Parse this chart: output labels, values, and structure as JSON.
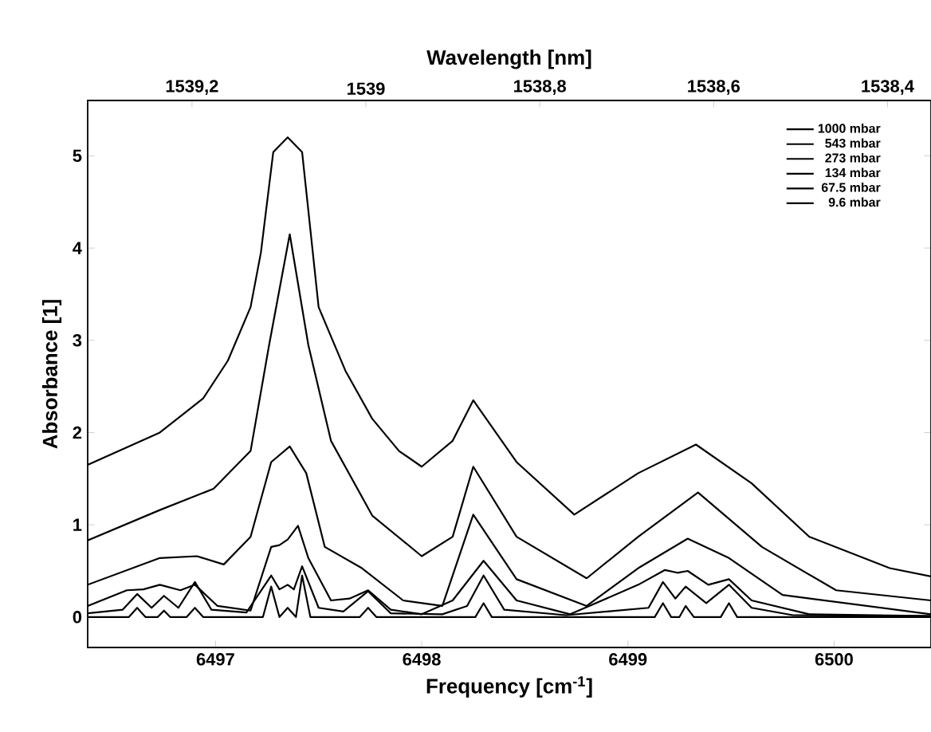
{
  "chart_data": {
    "type": "line",
    "xlabel": "Frequency [cm$^{-1}$]",
    "ylabel": "Absorbance [1]",
    "x2label": "Wavelength [nm]",
    "xlim": [
      6496.38,
      6500.47
    ],
    "ylim": [
      -0.33,
      5.6
    ],
    "xticks": [
      6497,
      6498,
      6499,
      6500
    ],
    "yticks": [
      0,
      1,
      2,
      3,
      4,
      5
    ],
    "x2lim": [
      1539.32,
      1538.35
    ],
    "x2ticks": [
      {
        "value": 1539.2,
        "label": "1539,2"
      },
      1539,
      {
        "value": 1538.8,
        "label": "1538,8"
      },
      {
        "value": 1538.6,
        "label": "1538,6"
      },
      {
        "value": 1538.4,
        "label": "1538,4"
      }
    ],
    "legend": "top right",
    "grid": false,
    "marker": "none",
    "line_style": "solid",
    "series": [
      {
        "name": "1000 mbar",
        "color": "#000000",
        "x": [
          6496.38,
          6496.73,
          6496.94,
          6497.06,
          6497.17,
          6497.22,
          6497.28,
          6497.35,
          6497.42,
          6497.5,
          6497.63,
          6497.76,
          6497.89,
          6498.0,
          6498.15,
          6498.25,
          6498.46,
          6498.74,
          6499.05,
          6499.33,
          6499.6,
          6499.88,
          6500.27,
          6500.47
        ],
        "values": [
          1.65,
          2.0,
          2.37,
          2.78,
          3.36,
          3.95,
          5.04,
          5.2,
          5.04,
          3.36,
          2.67,
          2.15,
          1.8,
          1.63,
          1.91,
          2.35,
          1.68,
          1.11,
          1.56,
          1.87,
          1.45,
          0.87,
          0.53,
          0.44
        ]
      },
      {
        "name": "543 mbar",
        "color": "#000000",
        "x": [
          6496.38,
          6496.73,
          6496.99,
          6497.17,
          6497.26,
          6497.36,
          6497.45,
          6497.56,
          6497.76,
          6498.0,
          6498.15,
          6498.25,
          6498.46,
          6498.8,
          6499.05,
          6499.34,
          6499.65,
          6500.01,
          6500.47
        ],
        "values": [
          0.83,
          1.16,
          1.39,
          1.8,
          2.95,
          4.15,
          2.95,
          1.91,
          1.1,
          0.66,
          0.87,
          1.63,
          0.87,
          0.42,
          0.87,
          1.35,
          0.76,
          0.29,
          0.18
        ]
      },
      {
        "name": "273 mbar",
        "color": "#000000",
        "x": [
          6496.38,
          6496.73,
          6496.91,
          6497.04,
          6497.17,
          6497.27,
          6497.36,
          6497.44,
          6497.53,
          6497.71,
          6497.91,
          6498.1,
          6498.25,
          6498.46,
          6498.8,
          6499.05,
          6499.29,
          6499.49,
          6499.75,
          6500.47
        ],
        "values": [
          0.35,
          0.64,
          0.66,
          0.57,
          0.87,
          1.68,
          1.85,
          1.56,
          0.76,
          0.53,
          0.18,
          0.12,
          1.11,
          0.41,
          0.12,
          0.53,
          0.85,
          0.64,
          0.24,
          0.03
        ]
      },
      {
        "name": "134 mbar",
        "color": "#000000",
        "x": [
          6496.38,
          6496.57,
          6496.65,
          6496.73,
          6496.83,
          6496.9,
          6497.01,
          6497.17,
          6497.27,
          6497.31,
          6497.35,
          6497.4,
          6497.45,
          6497.56,
          6497.65,
          6497.74,
          6497.85,
          6498.0,
          6498.15,
          6498.3,
          6498.46,
          6498.72,
          6499.05,
          6499.18,
          6499.24,
          6499.29,
          6499.39,
          6499.49,
          6499.6,
          6499.88,
          6500.47
        ],
        "values": [
          0.12,
          0.29,
          0.3,
          0.35,
          0.29,
          0.35,
          0.12,
          0.07,
          0.76,
          0.78,
          0.84,
          0.99,
          0.64,
          0.18,
          0.2,
          0.29,
          0.08,
          0.03,
          0.18,
          0.61,
          0.18,
          0.03,
          0.35,
          0.51,
          0.48,
          0.5,
          0.35,
          0.41,
          0.18,
          0.03,
          0.01
        ]
      },
      {
        "name": "67.5 mbar",
        "color": "#000000",
        "x": [
          6496.38,
          6496.55,
          6496.62,
          6496.69,
          6496.75,
          6496.82,
          6496.9,
          6496.98,
          6497.15,
          6497.27,
          6497.31,
          6497.35,
          6497.38,
          6497.42,
          6497.5,
          6497.62,
          6497.74,
          6497.85,
          6498.1,
          6498.22,
          6498.3,
          6498.4,
          6498.7,
          6499.1,
          6499.17,
          6499.23,
          6499.28,
          6499.38,
          6499.49,
          6499.6,
          6499.8,
          6500.47
        ],
        "values": [
          0.04,
          0.08,
          0.25,
          0.1,
          0.23,
          0.1,
          0.38,
          0.08,
          0.05,
          0.45,
          0.3,
          0.35,
          0.3,
          0.55,
          0.1,
          0.06,
          0.28,
          0.04,
          0.03,
          0.12,
          0.45,
          0.08,
          0.02,
          0.1,
          0.38,
          0.2,
          0.33,
          0.15,
          0.35,
          0.1,
          0.02,
          0.01
        ]
      },
      {
        "name": "9.6 mbar",
        "color": "#000000",
        "x": [
          6496.38,
          6496.58,
          6496.62,
          6496.66,
          6496.72,
          6496.75,
          6496.78,
          6496.86,
          6496.9,
          6496.94,
          6497.23,
          6497.27,
          6497.31,
          6497.35,
          6497.39,
          6497.42,
          6497.46,
          6497.7,
          6497.74,
          6497.78,
          6498.26,
          6498.3,
          6498.34,
          6499.13,
          6499.17,
          6499.21,
          6499.25,
          6499.28,
          6499.32,
          6499.45,
          6499.49,
          6499.53,
          6500.47
        ],
        "values": [
          0.0,
          0.0,
          0.1,
          0.0,
          0.0,
          0.07,
          0.0,
          0.0,
          0.1,
          0.0,
          0.0,
          0.33,
          0.0,
          0.1,
          0.0,
          0.45,
          0.0,
          0.0,
          0.1,
          0.0,
          0.0,
          0.15,
          0.0,
          0.0,
          0.15,
          0.0,
          0.0,
          0.12,
          0.0,
          0.0,
          0.15,
          0.0,
          0.0
        ]
      }
    ]
  }
}
